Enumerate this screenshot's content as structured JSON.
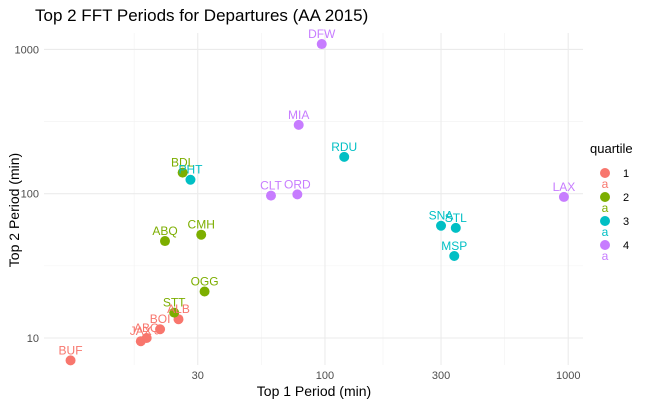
{
  "chart_data": {
    "type": "scatter",
    "title": "Top 2 FFT Periods for Departures (AA 2015)",
    "xlabel": "Top 1 Period (min)",
    "ylabel": "Top 2 Period (min)",
    "x_scale": "log10",
    "y_scale": "log10",
    "xlim": [
      7,
      1150
    ],
    "ylim": [
      6.5,
      1300
    ],
    "x_ticks": [
      30,
      100,
      300,
      1000
    ],
    "x_tick_labels": [
      "30",
      "100",
      "300",
      "1000"
    ],
    "y_ticks": [
      10,
      100,
      1000
    ],
    "y_tick_labels": [
      "10",
      "100",
      "1000"
    ],
    "grid": true,
    "legend": {
      "title": "quartile",
      "position": "right",
      "entries": [
        {
          "label": "1",
          "color": "#F8766D"
        },
        {
          "label": "2",
          "color": "#7CAE00"
        },
        {
          "label": "3",
          "color": "#00BFC4"
        },
        {
          "label": "4",
          "color": "#C77CFF"
        }
      ]
    },
    "series": [
      {
        "name": "1",
        "color": "#F8766D",
        "points": [
          {
            "label": "BUF",
            "x": 9,
            "y": 7
          },
          {
            "label": "JAX",
            "x": 17.5,
            "y": 9.5
          },
          {
            "label": "ABQ",
            "x": 18.5,
            "y": 10
          },
          {
            "label": "BOI",
            "x": 21,
            "y": 11.5
          },
          {
            "label": "ALB",
            "x": 25,
            "y": 13.5
          }
        ]
      },
      {
        "name": "2",
        "color": "#7CAE00",
        "points": [
          {
            "label": "STT",
            "x": 24,
            "y": 15
          },
          {
            "label": "OGG",
            "x": 32,
            "y": 21
          },
          {
            "label": "ABQ",
            "x": 22,
            "y": 47
          },
          {
            "label": "CMH",
            "x": 31,
            "y": 52
          },
          {
            "label": "BDL",
            "x": 26,
            "y": 140
          }
        ]
      },
      {
        "name": "3",
        "color": "#00BFC4",
        "points": [
          {
            "label": "PHT",
            "x": 28,
            "y": 125
          },
          {
            "label": "RDU",
            "x": 120,
            "y": 180
          },
          {
            "label": "SNA",
            "x": 300,
            "y": 60
          },
          {
            "label": "STL",
            "x": 345,
            "y": 58
          },
          {
            "label": "MSP",
            "x": 340,
            "y": 37
          }
        ]
      },
      {
        "name": "4",
        "color": "#C77CFF",
        "points": [
          {
            "label": "DFW",
            "x": 97,
            "y": 1090
          },
          {
            "label": "MIA",
            "x": 78,
            "y": 300
          },
          {
            "label": "CLT",
            "x": 60,
            "y": 97
          },
          {
            "label": "ORD",
            "x": 77,
            "y": 99
          },
          {
            "label": "LAX",
            "x": 960,
            "y": 95
          }
        ]
      }
    ]
  }
}
